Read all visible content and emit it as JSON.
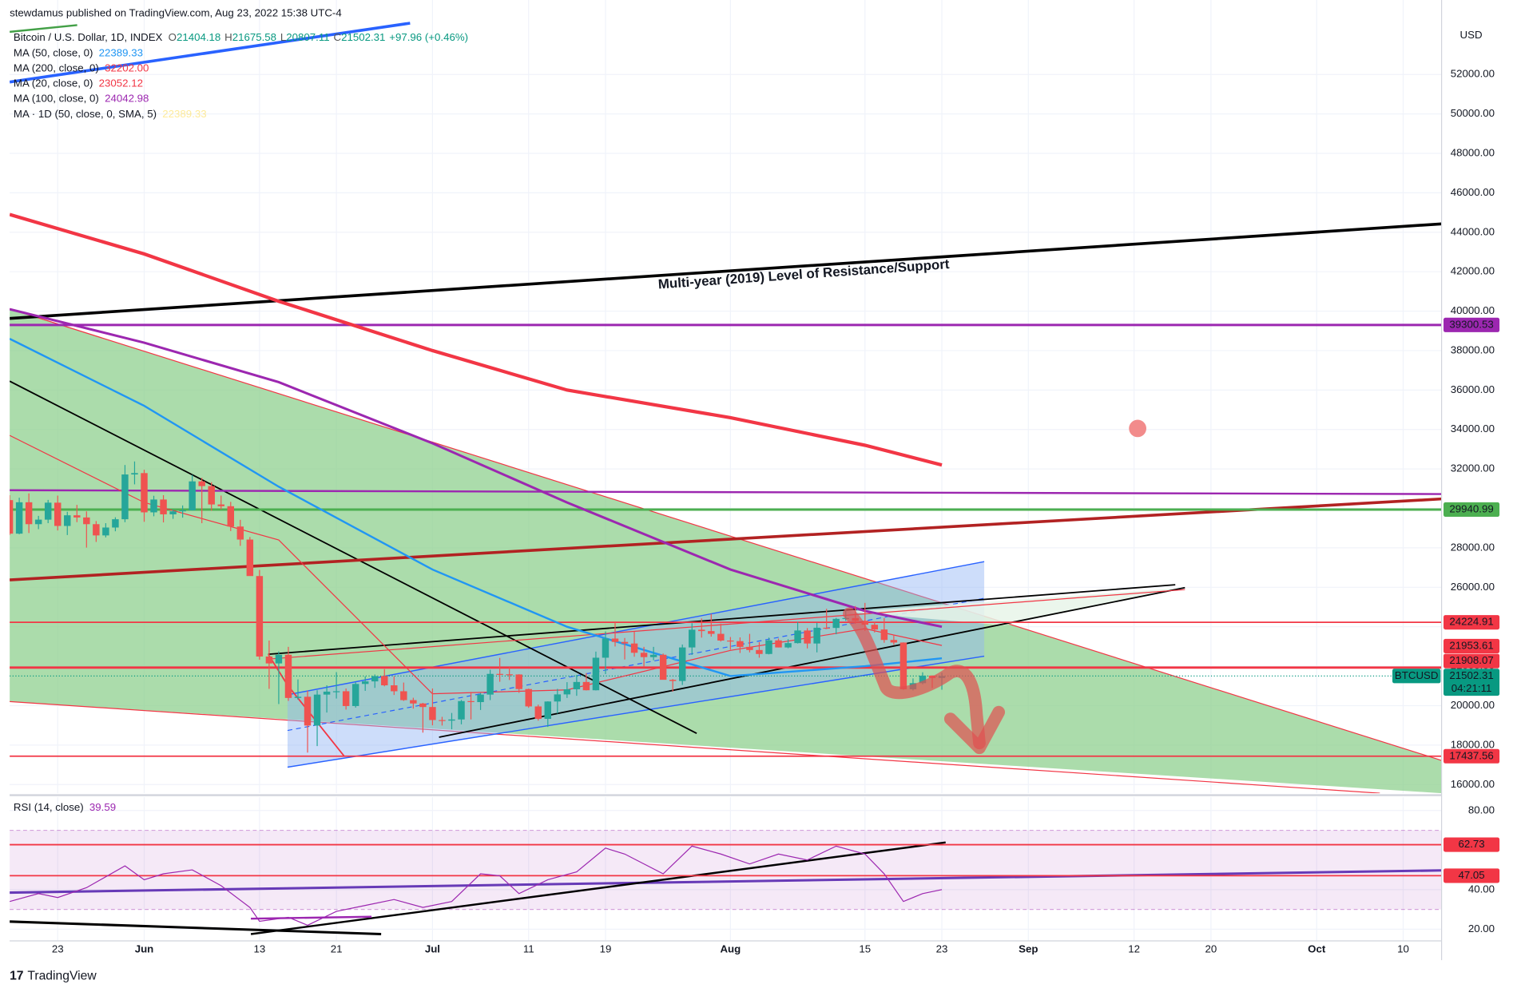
{
  "header": {
    "publisher": "stewdamus published on TradingView.com, Aug 23, 2022 15:38 UTC-4",
    "symbol": "Bitcoin / U.S. Dollar, 1D, INDEX",
    "ohlc": [
      {
        "key": "O",
        "value": "21404.18"
      },
      {
        "key": "H",
        "value": "21675.58"
      },
      {
        "key": "L",
        "value": "20807.11"
      },
      {
        "key": "C",
        "value": "21502.31"
      }
    ],
    "change": "+97.96 (+0.46%)"
  },
  "footer": "TradingView",
  "chart_data": [
    {
      "type": "candlestick",
      "currency": "USD",
      "annotation": "Multi-year (2019) Level of Resistance/Support",
      "up_color": "#26a69a",
      "down_color": "#ef5350",
      "grid": true,
      "xlim": [
        "May 18",
        "Oct 14"
      ],
      "ylim": [
        15560,
        55775
      ],
      "yticks": [
        {
          "value": 16000,
          "label": "16000.00"
        },
        {
          "value": 18000,
          "label": "18000.00"
        },
        {
          "value": 20000,
          "label": "20000.00"
        },
        {
          "value": 22000,
          "label": "22000.00"
        },
        {
          "value": 24000,
          "label": "24000.00"
        },
        {
          "value": 26000,
          "label": "26000.00"
        },
        {
          "value": 28000,
          "label": "28000.00"
        },
        {
          "value": 30000,
          "label": "30000.00"
        },
        {
          "value": 32000,
          "label": "32000.00"
        },
        {
          "value": 34000,
          "label": "34000.00"
        },
        {
          "value": 36000,
          "label": "36000.00"
        },
        {
          "value": 38000,
          "label": "38000.00"
        },
        {
          "value": 40000,
          "label": "40000.00"
        },
        {
          "value": 42000,
          "label": "42000.00"
        },
        {
          "value": 44000,
          "label": "44000.00"
        },
        {
          "value": 46000,
          "label": "46000.00"
        },
        {
          "value": 48000,
          "label": "48000.00"
        },
        {
          "value": 50000,
          "label": "50000.00"
        },
        {
          "value": 52000,
          "label": "52000.00"
        }
      ],
      "x": [
        "May 18",
        "May 19",
        "May 20",
        "May 21",
        "May 22",
        "May 23",
        "May 24",
        "May 25",
        "May 26",
        "May 27",
        "May 28",
        "May 29",
        "May 30",
        "May 31",
        "Jun 1",
        "Jun 2",
        "Jun 3",
        "Jun 4",
        "Jun 5",
        "Jun 6",
        "Jun 7",
        "Jun 8",
        "Jun 9",
        "Jun 10",
        "Jun 11",
        "Jun 12",
        "Jun 13",
        "Jun 14",
        "Jun 15",
        "Jun 16",
        "Jun 17",
        "Jun 18",
        "Jun 19",
        "Jun 20",
        "Jun 21",
        "Jun 22",
        "Jun 23",
        "Jun 24",
        "Jun 25",
        "Jun 26",
        "Jun 27",
        "Jun 28",
        "Jun 29",
        "Jun 30",
        "Jul 1",
        "Jul 2",
        "Jul 3",
        "Jul 4",
        "Jul 5",
        "Jul 6",
        "Jul 7",
        "Jul 8",
        "Jul 9",
        "Jul 10",
        "Jul 11",
        "Jul 12",
        "Jul 13",
        "Jul 14",
        "Jul 15",
        "Jul 16",
        "Jul 17",
        "Jul 18",
        "Jul 19",
        "Jul 20",
        "Jul 21",
        "Jul 22",
        "Jul 23",
        "Jul 24",
        "Jul 25",
        "Jul 26",
        "Jul 27",
        "Jul 28",
        "Jul 29",
        "Jul 30",
        "Jul 31",
        "Aug 1",
        "Aug 2",
        "Aug 3",
        "Aug 4",
        "Aug 5",
        "Aug 6",
        "Aug 7",
        "Aug 8",
        "Aug 9",
        "Aug 10",
        "Aug 11",
        "Aug 12",
        "Aug 13",
        "Aug 14",
        "Aug 15",
        "Aug 16",
        "Aug 17",
        "Aug 18",
        "Aug 19",
        "Aug 20",
        "Aug 21",
        "Aug 22",
        "Aug 23"
      ],
      "open": [
        30420,
        28720,
        30310,
        29200,
        29430,
        30290,
        29110,
        29650,
        29540,
        29200,
        28630,
        29030,
        29450,
        31720,
        31790,
        29800,
        30450,
        29700,
        29850,
        29900,
        31370,
        31130,
        30200,
        30110,
        29080,
        28420,
        26570,
        22490,
        22140,
        22580,
        20390,
        20450,
        18990,
        20560,
        20710,
        20730,
        19980,
        21100,
        21230,
        21500,
        21030,
        20730,
        20280,
        20110,
        19930,
        19270,
        19240,
        19300,
        20230,
        20180,
        20560,
        21610,
        21590,
        21580,
        20840,
        19960,
        19330,
        20210,
        20570,
        20830,
        21200,
        20780,
        22430,
        23400,
        23230,
        23150,
        22680,
        22460,
        22580,
        21310,
        21250,
        22950,
        23850,
        23780,
        23640,
        23300,
        23270,
        22980,
        22820,
        22620,
        23310,
        22950,
        23170,
        23810,
        23150,
        23950,
        23940,
        24400,
        24440,
        24300,
        24100,
        23860,
        23330,
        23200,
        20830,
        21140,
        21520,
        21404.18
      ],
      "high": [
        30670,
        30540,
        30760,
        29620,
        30430,
        30650,
        29830,
        30180,
        29850,
        29360,
        29250,
        29550,
        32200,
        32380,
        31960,
        30640,
        30670,
        29950,
        30150,
        31700,
        31550,
        31330,
        30650,
        30330,
        29420,
        28550,
        26880,
        23300,
        22750,
        22980,
        21330,
        20760,
        20780,
        21030,
        21700,
        20870,
        21190,
        21480,
        21580,
        21850,
        21490,
        21170,
        20400,
        20140,
        20870,
        19430,
        19630,
        20290,
        20700,
        20640,
        21820,
        22420,
        21940,
        21590,
        20860,
        20050,
        20220,
        20850,
        21190,
        21560,
        21650,
        22740,
        23760,
        24270,
        23430,
        23750,
        22980,
        22980,
        22640,
        21350,
        23100,
        24180,
        24420,
        24650,
        24160,
        23480,
        23460,
        23640,
        23220,
        23450,
        23400,
        23370,
        24240,
        23930,
        24200,
        24910,
        24450,
        24890,
        25050,
        25210,
        24250,
        24440,
        23600,
        23210,
        21380,
        21690,
        21540,
        21675.58
      ],
      "low": [
        28650,
        28690,
        28750,
        28950,
        29250,
        28880,
        28650,
        29300,
        28010,
        28300,
        28530,
        28840,
        29300,
        31220,
        29320,
        29600,
        29290,
        29470,
        29530,
        29890,
        29250,
        29880,
        29950,
        28850,
        28100,
        26600,
        22330,
        20850,
        20080,
        20240,
        20300,
        17620,
        17950,
        19650,
        20360,
        19800,
        19900,
        20750,
        20900,
        20980,
        20540,
        20240,
        19850,
        18630,
        19000,
        18990,
        18800,
        19050,
        19300,
        19780,
        20280,
        21210,
        21300,
        20650,
        19890,
        19240,
        18920,
        19600,
        20390,
        20500,
        20770,
        20770,
        21600,
        23000,
        22340,
        22480,
        21950,
        22300,
        21680,
        20710,
        21050,
        22570,
        23450,
        23500,
        23250,
        22840,
        22670,
        22700,
        22430,
        22600,
        22950,
        22910,
        23150,
        22900,
        22700,
        23880,
        23620,
        24300,
        24150,
        23790,
        23710,
        23190,
        23080,
        20800,
        20770,
        21080,
        20890,
        20807.11
      ],
      "close": [
        28720,
        30310,
        29200,
        29430,
        30290,
        29110,
        29650,
        29540,
        29200,
        28630,
        29030,
        29450,
        31720,
        31790,
        29800,
        30450,
        29700,
        29850,
        29900,
        31370,
        31130,
        30200,
        30110,
        29080,
        28420,
        26570,
        22490,
        22140,
        22580,
        20390,
        20450,
        18990,
        20560,
        20710,
        20730,
        19980,
        21100,
        21230,
        21500,
        21030,
        20730,
        20280,
        20110,
        19930,
        19270,
        19240,
        19300,
        20230,
        20180,
        20560,
        21610,
        21590,
        21580,
        20840,
        19960,
        19330,
        20210,
        20570,
        20830,
        21200,
        20780,
        22430,
        23400,
        23230,
        23150,
        22680,
        22460,
        22580,
        21310,
        21250,
        22950,
        23850,
        23780,
        23640,
        23300,
        23270,
        22980,
        22820,
        22620,
        23310,
        22950,
        23170,
        23810,
        23150,
        23950,
        23940,
        24400,
        24440,
        24300,
        24100,
        23860,
        23330,
        23200,
        20830,
        21140,
        21520,
        21400,
        21502.31
      ],
      "series": [
        {
          "name": "MA (50, close, 0)",
          "last_label": "22389.33",
          "color": "#2196f3",
          "line_width": 2,
          "x": [
            "May 18",
            "Jun 1",
            "Jun 15",
            "Jul 1",
            "Jul 15",
            "Aug 1",
            "Aug 15",
            "Aug 23"
          ],
          "values": [
            38600,
            35200,
            31100,
            26900,
            24000,
            21500,
            22000,
            22400
          ]
        },
        {
          "name": "MA (200, close, 0)",
          "last_label": "32202.00",
          "color": "#f23645",
          "line_width": 3.5,
          "x": [
            "May 18",
            "Jun 1",
            "Jun 15",
            "Jul 1",
            "Jul 15",
            "Aug 1",
            "Aug 15",
            "Aug 23"
          ],
          "values": [
            44900,
            42900,
            40500,
            38000,
            36000,
            34600,
            33200,
            32200
          ]
        },
        {
          "name": "MA (20, close, 0)",
          "last_label": "23052.12",
          "color": "#f23645",
          "line_width": 1,
          "x": [
            "May 18",
            "Jun 1",
            "Jun 15",
            "Jul 1",
            "Jul 15",
            "Aug 1",
            "Aug 15",
            "Aug 23"
          ],
          "values": [
            33700,
            30300,
            28400,
            20600,
            20800,
            22800,
            23900,
            23050
          ]
        },
        {
          "name": "MA (100, close, 0)",
          "last_label": "24042.98",
          "color": "#9c27b0",
          "line_width": 2.5,
          "x": [
            "May 18",
            "Jun 1",
            "Jun 15",
            "Jul 1",
            "Jul 15",
            "Aug 1",
            "Aug 15",
            "Aug 23"
          ],
          "values": [
            40100,
            38400,
            36400,
            33300,
            30300,
            26900,
            24800,
            24000
          ]
        }
      ],
      "legend_only": {
        "name": "MA · 1D (50, close, 0, SMA, 5)",
        "last_label": "22389.33",
        "color": "#fdd835"
      },
      "price_lines": [
        {
          "value": 39300.53,
          "color": "#9c27b0"
        },
        {
          "value": 29940.99,
          "color": "#4caf50"
        },
        {
          "value": 24224.91,
          "color": "#f23645"
        },
        {
          "value": 21953.61,
          "color": "#f23645"
        },
        {
          "value": 21908.07,
          "color": "#f23645"
        },
        {
          "value": 17437.56,
          "color": "#f23645"
        }
      ],
      "last_price": {
        "symbol": "BTCUSD",
        "value": 21502.31,
        "countdown": "04:21:11",
        "color": "#089981"
      }
    },
    {
      "type": "line",
      "title": "RSI (14, close)",
      "last": 39.59,
      "color": "#9c27b0",
      "band": [
        30,
        70
      ],
      "band_color": "#9c27b0",
      "grid": true,
      "xlim": [
        "May 18",
        "Oct 14"
      ],
      "ylim": [
        14.1,
        86.8
      ],
      "xticks": [
        {
          "value": "May 23",
          "label": "23"
        },
        {
          "value": "Jun 1",
          "label": "Jun"
        },
        {
          "value": "Jun 13",
          "label": "13"
        },
        {
          "value": "Jun 21",
          "label": "21"
        },
        {
          "value": "Jul 1",
          "label": "Jul"
        },
        {
          "value": "Jul 11",
          "label": "11"
        },
        {
          "value": "Jul 19",
          "label": "19"
        },
        {
          "value": "Aug 1",
          "label": "Aug"
        },
        {
          "value": "Aug 15",
          "label": "15"
        },
        {
          "value": "Aug 23",
          "label": "23"
        },
        {
          "value": "Sep 1",
          "label": "Sep"
        },
        {
          "value": "Sep 12",
          "label": "12"
        },
        {
          "value": "Sep 20",
          "label": "20"
        },
        {
          "value": "Oct 1",
          "label": "Oct"
        },
        {
          "value": "Oct 10",
          "label": "10"
        }
      ],
      "yticks": [
        {
          "value": 20,
          "label": "20.00"
        },
        {
          "value": 40,
          "label": "40.00"
        },
        {
          "value": 80,
          "label": "80.00"
        }
      ],
      "x": [
        "May 18",
        "May 21",
        "May 23",
        "May 26",
        "May 30",
        "Jun 1",
        "Jun 3",
        "Jun 6",
        "Jun 9",
        "Jun 12",
        "Jun 13",
        "Jun 16",
        "Jun 18",
        "Jun 21",
        "Jun 24",
        "Jun 27",
        "Jun 30",
        "Jul 3",
        "Jul 6",
        "Jul 8",
        "Jul 10",
        "Jul 13",
        "Jul 16",
        "Jul 19",
        "Jul 21",
        "Jul 25",
        "Jul 28",
        "Jul 31",
        "Aug 3",
        "Aug 6",
        "Aug 9",
        "Aug 12",
        "Aug 15",
        "Aug 17",
        "Aug 19",
        "Aug 21",
        "Aug 23"
      ],
      "values": [
        34,
        38,
        36,
        41,
        52,
        45,
        48,
        50,
        42,
        31,
        24,
        26,
        22,
        29,
        32,
        35,
        31,
        34,
        48,
        47,
        38,
        45,
        49,
        61,
        58,
        48,
        62,
        58,
        53,
        58,
        55,
        62,
        58,
        48,
        34,
        38,
        40
      ],
      "price_lines": [
        {
          "value": 62.73,
          "color": "#f23645"
        },
        {
          "value": 47.05,
          "color": "#f23645"
        }
      ]
    }
  ]
}
